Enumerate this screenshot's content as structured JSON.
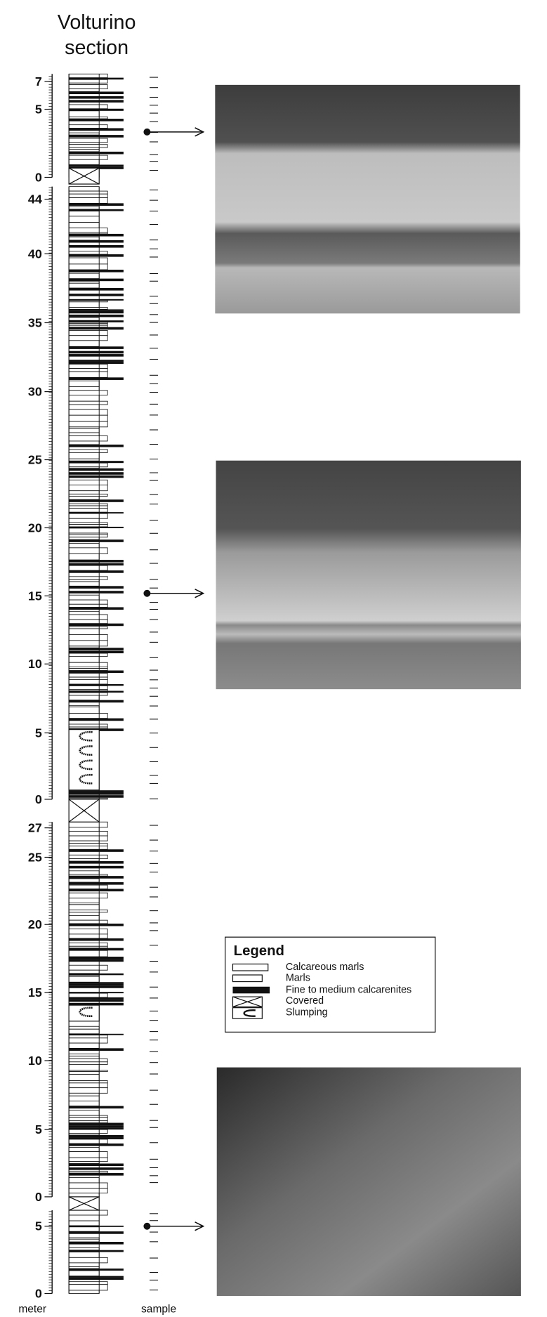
{
  "title": {
    "line1": "Volturino",
    "line2": "section"
  },
  "scale": {
    "segments": [
      {
        "ticks": [
          "7",
          "5",
          "0"
        ]
      },
      {
        "ticks": [
          "44",
          "40",
          "35",
          "30",
          "25",
          "20",
          "15",
          "10",
          "5",
          "0"
        ]
      },
      {
        "ticks": [
          "27",
          "25",
          "20",
          "15",
          "10",
          "5",
          "0"
        ]
      },
      {
        "ticks": [
          "5",
          "0"
        ]
      }
    ]
  },
  "footer": {
    "meter": "meter",
    "sample": "sample"
  },
  "legend": {
    "title": "Legend",
    "items": [
      "Calcareous marls",
      "Marls",
      "Fine to medium calcarenites",
      "Covered",
      "Slumping"
    ]
  }
}
